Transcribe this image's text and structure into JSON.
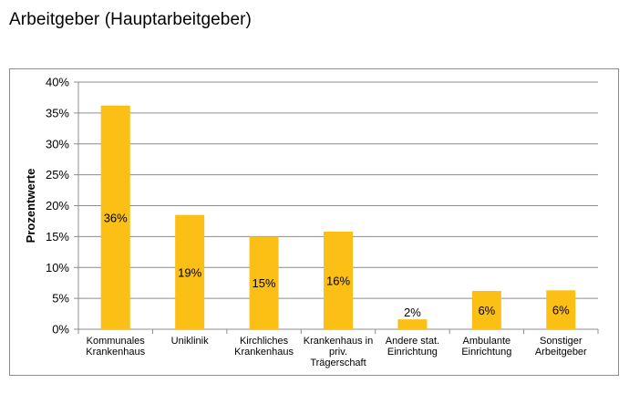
{
  "page": {
    "title": "Arbeitgeber (Hauptarbeitgeber)"
  },
  "colors": {
    "bar": "#FBBF16",
    "grid": "#8c8c8c",
    "frame": "#8c8c8c"
  },
  "chart_data": {
    "type": "bar",
    "title": "",
    "xlabel": "",
    "ylabel": "Prozentwerte",
    "ylim": [
      0,
      40
    ],
    "grid": true,
    "legend": "none",
    "yticks": [
      "0%",
      "5%",
      "10%",
      "15%",
      "20%",
      "25%",
      "30%",
      "35%",
      "40%"
    ],
    "categories": [
      [
        "Kommunales",
        "Krankenhaus"
      ],
      [
        "Uniklinik"
      ],
      [
        "Kirchliches",
        "Krankenhaus"
      ],
      [
        "Krankenhaus in",
        "priv.",
        "Trägerschaft"
      ],
      [
        "Andere stat.",
        "Einrichtung"
      ],
      [
        "Ambulante",
        "Einrichtung"
      ],
      [
        "Sonstiger",
        "Arbeitgeber"
      ]
    ],
    "values": [
      36.2,
      18.5,
      15.0,
      15.8,
      1.6,
      6.2,
      6.3
    ],
    "labels": [
      "36%",
      "19%",
      "15%",
      "16%",
      "2%",
      "6%",
      "6%"
    ]
  }
}
